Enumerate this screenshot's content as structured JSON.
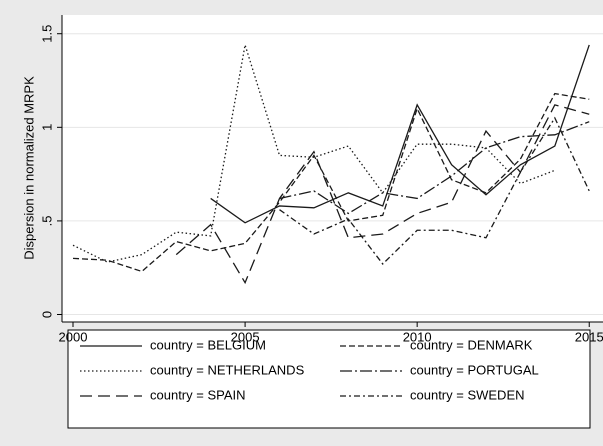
{
  "chart_data": {
    "type": "line",
    "y_label": "Dispersion in normalized MRPK",
    "x": [
      2000,
      2001,
      2002,
      2003,
      2004,
      2005,
      2006,
      2007,
      2008,
      2009,
      2010,
      2011,
      2012,
      2013,
      2014,
      2015
    ],
    "xlim": [
      1999.68,
      2015.4
    ],
    "xticks": [
      2000,
      2005,
      2010,
      2015
    ],
    "ylim": [
      -0.04,
      1.6
    ],
    "yticks": [
      0,
      {
        "value": 0.5,
        "label": ".5"
      },
      1,
      1.5
    ],
    "grid": true,
    "series": [
      {
        "name": "country = BELGIUM",
        "color": "#1a1a1a",
        "dash": "none",
        "values": [
          null,
          null,
          null,
          null,
          0.62,
          0.49,
          0.58,
          0.57,
          0.65,
          0.58,
          1.12,
          0.8,
          0.64,
          0.8,
          0.9,
          1.44
        ]
      },
      {
        "name": "country = DENMARK",
        "color": "#1a1a1a",
        "dash": "6,3",
        "values": [
          0.3,
          0.29,
          0.23,
          0.39,
          0.34,
          0.38,
          0.6,
          0.85,
          0.5,
          0.53,
          1.1,
          0.72,
          0.65,
          0.83,
          1.18,
          1.15
        ]
      },
      {
        "name": "country = NETHERLANDS",
        "color": "#1a1a1a",
        "dash": "1.5,2.5",
        "values": [
          0.37,
          0.28,
          0.32,
          0.44,
          0.42,
          1.44,
          0.85,
          0.84,
          0.9,
          0.65,
          0.91,
          0.91,
          0.89,
          0.7,
          0.77,
          null
        ]
      },
      {
        "name": "country = PORTUGAL",
        "color": "#1a1a1a",
        "dash": "12,3,2,3",
        "values": [
          null,
          null,
          null,
          null,
          null,
          null,
          0.62,
          0.66,
          0.54,
          0.65,
          0.62,
          0.74,
          0.89,
          0.95,
          0.96,
          1.03
        ]
      },
      {
        "name": "country = SPAIN",
        "color": "#1a1a1a",
        "dash": "12,6",
        "values": [
          null,
          null,
          null,
          0.32,
          0.48,
          0.17,
          0.62,
          0.87,
          0.41,
          0.43,
          0.54,
          0.6,
          0.98,
          0.76,
          1.12,
          1.07
        ]
      },
      {
        "name": "country = SWEDEN",
        "color": "#1a1a1a",
        "dash": "6,3,2,3",
        "values": [
          null,
          null,
          null,
          null,
          null,
          null,
          0.56,
          0.43,
          0.51,
          0.27,
          0.45,
          0.45,
          0.41,
          0.76,
          1.05,
          0.66
        ]
      }
    ]
  }
}
